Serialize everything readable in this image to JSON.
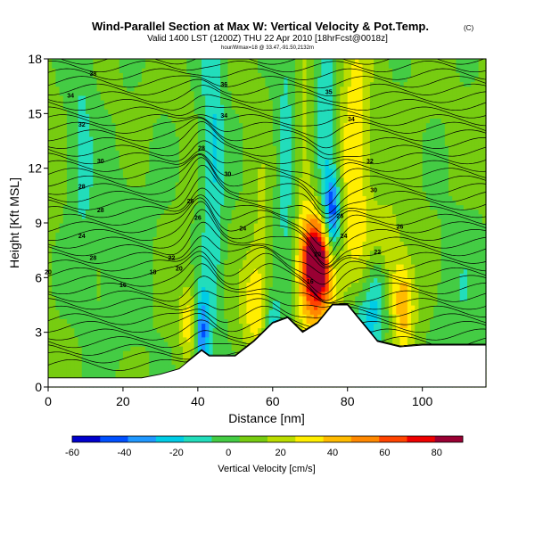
{
  "chart_data": {
    "type": "heatmap",
    "title": "Wind-Parallel Section at Max W: Vertical Velocity & Pot.Temp.",
    "copyright": "(C)",
    "subtitle": "Valid 1400 LST (1200Z) THU 22 Apr 2010 [18hrFcst@0018z]",
    "small_line": "hour/Wmax=18 @ 33.47,-91.50,2132m",
    "xlabel": "Distance [nm]",
    "ylabel": "Height [Kft MSL]",
    "xlim": [
      0,
      117
    ],
    "ylim": [
      0,
      18
    ],
    "x_ticks": [
      "0",
      "20",
      "40",
      "60",
      "80",
      "100"
    ],
    "y_ticks": [
      "0",
      "3",
      "6",
      "9",
      "12",
      "15",
      "18"
    ],
    "colorbar": {
      "label": "Vertical Velocity [cm/s]",
      "ticks": [
        "-60",
        "-40",
        "-20",
        "0",
        "20",
        "40",
        "60",
        "80"
      ],
      "range": [
        -60,
        90
      ],
      "colors": [
        "#0000cc",
        "#0050ff",
        "#2098ff",
        "#00cce6",
        "#22ddbb",
        "#44cc44",
        "#77cc11",
        "#bbdd00",
        "#ffee00",
        "#ffbb00",
        "#ff8800",
        "#ff4400",
        "#ee0000",
        "#990033"
      ]
    },
    "terrain": [
      [
        0,
        0.5
      ],
      [
        12,
        0.5
      ],
      [
        25,
        0.5
      ],
      [
        30,
        0.7
      ],
      [
        35,
        1.0
      ],
      [
        38,
        1.5
      ],
      [
        41,
        2.0
      ],
      [
        43,
        1.7
      ],
      [
        46,
        1.7
      ],
      [
        50,
        1.7
      ],
      [
        55,
        2.5
      ],
      [
        60,
        3.5
      ],
      [
        64,
        3.8
      ],
      [
        68,
        3.0
      ],
      [
        72,
        3.5
      ],
      [
        76,
        4.5
      ],
      [
        80,
        4.5
      ],
      [
        84,
        3.5
      ],
      [
        88,
        2.5
      ],
      [
        94,
        2.2
      ],
      [
        100,
        2.3
      ],
      [
        117,
        2.3
      ]
    ],
    "w_features": [
      {
        "x": 41,
        "z": 3.0,
        "sx": 1.5,
        "sz": 1.6,
        "w": -50
      },
      {
        "x": 44,
        "z": 13,
        "sx": 2.2,
        "sz": 7,
        "w": -25
      },
      {
        "x": 38,
        "z": 3.5,
        "sx": 2.0,
        "sz": 1.5,
        "w": 30
      },
      {
        "x": 55,
        "z": 4.5,
        "sx": 2.5,
        "sz": 2.0,
        "w": 25
      },
      {
        "x": 57,
        "z": 8,
        "sx": 2.0,
        "sz": 4.0,
        "w": 10
      },
      {
        "x": 60,
        "z": 2.5,
        "sx": 1.5,
        "sz": 1.5,
        "w": -35
      },
      {
        "x": 64,
        "z": 12,
        "sx": 2.2,
        "sz": 7,
        "w": -20
      },
      {
        "x": 68,
        "z": 10,
        "sx": 2.5,
        "sz": 7,
        "w": 18
      },
      {
        "x": 72,
        "z": 7,
        "sx": 2.5,
        "sz": 1.6,
        "w": 85
      },
      {
        "x": 73,
        "z": 5,
        "sx": 3.5,
        "sz": 2.5,
        "w": 30
      },
      {
        "x": 76,
        "z": 9.5,
        "sx": 1.6,
        "sz": 1.6,
        "w": -55
      },
      {
        "x": 74,
        "z": 14,
        "sx": 2.0,
        "sz": 4.0,
        "w": -25
      },
      {
        "x": 82,
        "z": 12,
        "sx": 3.0,
        "sz": 6.0,
        "w": 30
      },
      {
        "x": 84,
        "z": 3.5,
        "sx": 3.0,
        "sz": 1.8,
        "w": -30
      },
      {
        "x": 88,
        "z": 5.5,
        "sx": 2.0,
        "sz": 1.8,
        "w": -25
      },
      {
        "x": 90,
        "z": 7.5,
        "sx": 3.0,
        "sz": 2.0,
        "w": 20
      },
      {
        "x": 95,
        "z": 4.5,
        "sx": 2.2,
        "sz": 1.8,
        "w": 40
      },
      {
        "x": 110,
        "z": 5,
        "sx": 5,
        "sz": 3,
        "w": -10
      },
      {
        "x": 9,
        "z": 13,
        "sx": 2.5,
        "sz": 5,
        "w": -15
      },
      {
        "x": 20,
        "z": 7,
        "sx": 6,
        "sz": 4,
        "w": -8
      }
    ],
    "theta_labels": [
      {
        "x": 12,
        "z": 17.2,
        "label": "38"
      },
      {
        "x": 6,
        "z": 16.0,
        "label": "34"
      },
      {
        "x": 9,
        "z": 14.4,
        "label": "32"
      },
      {
        "x": 14,
        "z": 12.4,
        "label": "30"
      },
      {
        "x": 9,
        "z": 11.0,
        "label": "28"
      },
      {
        "x": 14,
        "z": 9.7,
        "label": "28"
      },
      {
        "x": 9,
        "z": 8.3,
        "label": "24"
      },
      {
        "x": 12,
        "z": 7.1,
        "label": "28"
      },
      {
        "x": 0,
        "z": 6.3,
        "label": "20"
      },
      {
        "x": 20,
        "z": 5.6,
        "label": "16"
      },
      {
        "x": 28,
        "z": 6.3,
        "label": "18"
      },
      {
        "x": 33,
        "z": 7.1,
        "label": "22"
      },
      {
        "x": 35,
        "z": 6.5,
        "label": "20"
      },
      {
        "x": 38,
        "z": 10.2,
        "label": "26"
      },
      {
        "x": 40,
        "z": 9.3,
        "label": "26"
      },
      {
        "x": 41,
        "z": 13.1,
        "label": "28"
      },
      {
        "x": 47,
        "z": 16.6,
        "label": "36"
      },
      {
        "x": 47,
        "z": 14.9,
        "label": "34"
      },
      {
        "x": 48,
        "z": 11.7,
        "label": "30"
      },
      {
        "x": 52,
        "z": 8.7,
        "label": "24"
      },
      {
        "x": 75,
        "z": 16.2,
        "label": "35"
      },
      {
        "x": 81,
        "z": 14.7,
        "label": "34"
      },
      {
        "x": 86,
        "z": 12.4,
        "label": "32"
      },
      {
        "x": 87,
        "z": 10.8,
        "label": "30"
      },
      {
        "x": 78,
        "z": 9.4,
        "label": "26"
      },
      {
        "x": 79,
        "z": 8.3,
        "label": "24"
      },
      {
        "x": 72,
        "z": 7.3,
        "label": "20"
      },
      {
        "x": 88,
        "z": 7.4,
        "label": "22"
      },
      {
        "x": 94,
        "z": 8.8,
        "label": "26"
      },
      {
        "x": 70,
        "z": 5.8,
        "label": "16"
      }
    ]
  }
}
